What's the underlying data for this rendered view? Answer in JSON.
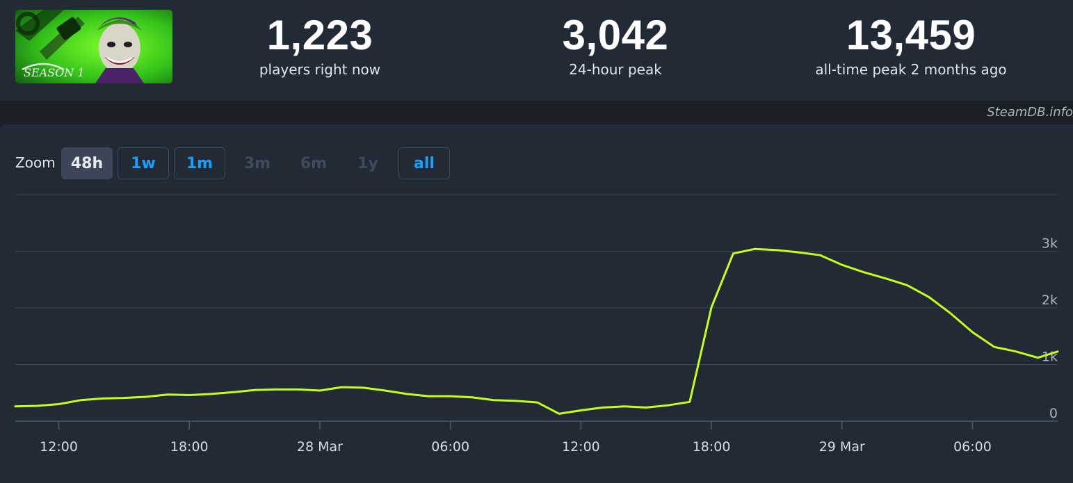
{
  "header": {
    "thumbnail_icon": "joker-season-1-art",
    "stats": [
      {
        "value": "1,223",
        "label": "players right now"
      },
      {
        "value": "3,042",
        "label": "24-hour peak"
      },
      {
        "value": "13,459",
        "label": "all-time peak 2 months ago"
      }
    ],
    "credit": "SteamDB.info"
  },
  "zoom": {
    "label": "Zoom",
    "buttons": [
      {
        "label": "48h",
        "state": "active"
      },
      {
        "label": "1w",
        "state": "enabled"
      },
      {
        "label": "1m",
        "state": "enabled"
      },
      {
        "label": "3m",
        "state": "disabled"
      },
      {
        "label": "6m",
        "state": "disabled"
      },
      {
        "label": "1y",
        "state": "disabled"
      },
      {
        "label": "all",
        "state": "enabled"
      }
    ]
  },
  "colors": {
    "line": "#c4ff1e",
    "accent": "#1a9fff",
    "background": "#1b2027",
    "panel": "#222a36"
  },
  "chart_data": {
    "type": "line",
    "ylim": [
      0,
      4000
    ],
    "y_ticks": [
      0,
      1000,
      2000,
      3000
    ],
    "y_tick_labels": [
      "0",
      "1k",
      "2k",
      "3k"
    ],
    "y_axis_side": "right",
    "grid": true,
    "legend": "none",
    "x_range": [
      "27 Mar 10:00",
      "29 Mar 09:55"
    ],
    "x_ticks": [
      {
        "label": "12:00",
        "t": "27 Mar 12:00"
      },
      {
        "label": "18:00",
        "t": "27 Mar 18:00"
      },
      {
        "label": "28 Mar",
        "t": "28 Mar 00:00"
      },
      {
        "label": "06:00",
        "t": "28 Mar 06:00"
      },
      {
        "label": "12:00",
        "t": "28 Mar 12:00"
      },
      {
        "label": "18:00",
        "t": "28 Mar 18:00"
      },
      {
        "label": "29 Mar",
        "t": "29 Mar 00:00"
      },
      {
        "label": "06:00",
        "t": "29 Mar 06:00"
      }
    ],
    "series": [
      {
        "x": [
          "27 Mar 10:00",
          "27 Mar 11:00",
          "27 Mar 12:00",
          "27 Mar 13:00",
          "27 Mar 14:00",
          "27 Mar 15:00",
          "27 Mar 16:00",
          "27 Mar 17:00",
          "27 Mar 18:00",
          "27 Mar 19:00",
          "27 Mar 20:00",
          "27 Mar 21:00",
          "27 Mar 22:00",
          "27 Mar 23:00",
          "28 Mar 00:00",
          "28 Mar 01:00",
          "28 Mar 02:00",
          "28 Mar 03:00",
          "28 Mar 04:00",
          "28 Mar 05:00",
          "28 Mar 06:00",
          "28 Mar 07:00",
          "28 Mar 08:00",
          "28 Mar 09:00",
          "28 Mar 10:00",
          "28 Mar 11:00",
          "28 Mar 12:00",
          "28 Mar 13:00",
          "28 Mar 14:00",
          "28 Mar 15:00",
          "28 Mar 16:00",
          "28 Mar 17:00",
          "28 Mar 18:00",
          "28 Mar 19:00",
          "28 Mar 20:00",
          "28 Mar 21:00",
          "28 Mar 22:00",
          "28 Mar 23:00",
          "29 Mar 00:00",
          "29 Mar 01:00",
          "29 Mar 02:00",
          "29 Mar 03:00",
          "29 Mar 04:00",
          "29 Mar 05:00",
          "29 Mar 06:00",
          "29 Mar 07:00",
          "29 Mar 08:00",
          "29 Mar 09:00",
          "29 Mar 09:55"
        ],
        "values": [
          260,
          270,
          300,
          370,
          400,
          410,
          430,
          470,
          460,
          480,
          510,
          550,
          560,
          560,
          540,
          600,
          590,
          540,
          480,
          440,
          440,
          420,
          370,
          360,
          330,
          130,
          190,
          240,
          260,
          240,
          280,
          340,
          2010,
          2960,
          3040,
          3020,
          2980,
          2930,
          2760,
          2630,
          2520,
          2400,
          2190,
          1900,
          1570,
          1310,
          1230,
          1120,
          1230
        ]
      }
    ]
  }
}
